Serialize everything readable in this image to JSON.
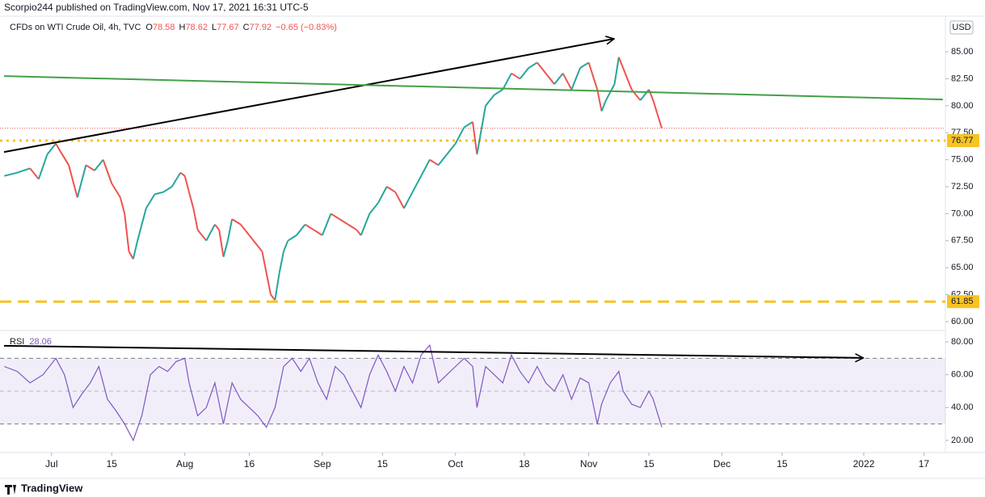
{
  "header": {
    "publisher": "Scorpio244 published on TradingView.com, Nov 17, 2021 16:31 UTC-5",
    "currency": "USD",
    "footer": "TradingView"
  },
  "chart_data": [
    {
      "type": "line",
      "title": "CFDs on WTI Crude Oil, 4h, TVC",
      "ohlc": [
        {
          "key": "O",
          "value": "78.58"
        },
        {
          "key": "H",
          "value": "78.62"
        },
        {
          "key": "L",
          "value": "77.67"
        },
        {
          "key": "C",
          "value": "77.92"
        }
      ],
      "change": "−0.65 (−0.83%)",
      "up_color": "#26a69a",
      "down_color": "#ef5350",
      "x": [
        1,
        4,
        7,
        9,
        11,
        13,
        14,
        16,
        18,
        20,
        22,
        24,
        26,
        28,
        29,
        30,
        31,
        32,
        34,
        36,
        38,
        40,
        42,
        43,
        44,
        45,
        46,
        48,
        50,
        51,
        52,
        53,
        54,
        56,
        58,
        60,
        61,
        62,
        63,
        64,
        65,
        66,
        67,
        69,
        71,
        73,
        75,
        77,
        79,
        81,
        83,
        84,
        86,
        88,
        90,
        92,
        94,
        96,
        98,
        100,
        102,
        104,
        106,
        108,
        110,
        111,
        113,
        115,
        117,
        119,
        121,
        123,
        125,
        127,
        129,
        131,
        133,
        135,
        137,
        139,
        140,
        141,
        143,
        144,
        145,
        147,
        149,
        151,
        152,
        154
      ],
      "values": [
        73.5,
        73.8,
        74.2,
        73.2,
        75.5,
        76.5,
        75.8,
        74.5,
        71.5,
        74.5,
        74.0,
        75.0,
        72.8,
        71.5,
        70.0,
        66.5,
        65.8,
        67.5,
        70.5,
        71.8,
        72.0,
        72.5,
        73.8,
        73.5,
        72.0,
        70.5,
        68.5,
        67.5,
        69.0,
        68.5,
        66.0,
        67.5,
        69.5,
        69.0,
        68.0,
        67.0,
        66.5,
        64.5,
        62.5,
        62.0,
        64.5,
        66.5,
        67.5,
        68.0,
        69.0,
        68.5,
        68.0,
        70.0,
        69.5,
        69.0,
        68.5,
        68.0,
        70.0,
        71.0,
        72.5,
        72.0,
        70.5,
        72.0,
        73.5,
        75.0,
        74.5,
        75.5,
        76.5,
        78.0,
        78.5,
        75.5,
        80.0,
        81.0,
        81.5,
        83.0,
        82.5,
        83.5,
        84.0,
        83.0,
        82.0,
        83.0,
        81.5,
        83.5,
        84.0,
        81.5,
        79.5,
        80.5,
        82.0,
        84.5,
        83.5,
        81.5,
        80.5,
        81.5,
        80.5,
        77.92
      ],
      "xlim": [
        0,
        220
      ],
      "xticks": [
        {
          "value": 12,
          "label": "Jul"
        },
        {
          "value": 26,
          "label": "15"
        },
        {
          "value": 43,
          "label": "Aug"
        },
        {
          "value": 58,
          "label": "16"
        },
        {
          "value": 75,
          "label": "Sep"
        },
        {
          "value": 89,
          "label": "15"
        },
        {
          "value": 106,
          "label": "Oct"
        },
        {
          "value": 122,
          "label": "18"
        },
        {
          "value": 137,
          "label": "Nov"
        },
        {
          "value": 151,
          "label": "15"
        },
        {
          "value": 168,
          "label": "Dec"
        },
        {
          "value": 182,
          "label": "15"
        },
        {
          "value": 201,
          "label": "2022"
        },
        {
          "value": 215,
          "label": "17"
        }
      ],
      "ylim": [
        59.25,
        88.15
      ],
      "yticks": [
        {
          "value": 60,
          "label": "60.00"
        },
        {
          "value": 62.5,
          "label": "62.50"
        },
        {
          "value": 65,
          "label": "65.00"
        },
        {
          "value": 67.5,
          "label": "67.50"
        },
        {
          "value": 70,
          "label": "70.00"
        },
        {
          "value": 72.5,
          "label": "72.50"
        },
        {
          "value": 75,
          "label": "75.00"
        },
        {
          "value": 77.5,
          "label": "77.50"
        },
        {
          "value": 80,
          "label": "80.00"
        },
        {
          "value": 82.5,
          "label": "82.50"
        },
        {
          "value": 85,
          "label": "85.00"
        }
      ],
      "trendlines": [
        {
          "x": [
            0.94,
            142.9
          ],
          "y": [
            75.71,
            86.2
          ],
          "color": "#000000",
          "arrow": true
        },
        {
          "x": [
            0.94,
            219.4
          ],
          "y": [
            82.75,
            80.58
          ],
          "color": "#43a047",
          "arrow": false
        }
      ],
      "hlines": [
        {
          "value": 76.77,
          "color": "#f7c325",
          "style": "dotted"
        },
        {
          "value": 61.85,
          "color": "#f7c325",
          "style": "dashed"
        }
      ],
      "last_color": "#ef5350"
    },
    {
      "type": "line",
      "title": "RSI",
      "color": "#7e57c2",
      "x": [
        1,
        4,
        7,
        10,
        13,
        15,
        17,
        19,
        21,
        23,
        25,
        27,
        29,
        31,
        33,
        35,
        37,
        39,
        41,
        43,
        44,
        46,
        48,
        50,
        52,
        54,
        56,
        58,
        60,
        62,
        64,
        66,
        68,
        70,
        72,
        74,
        76,
        78,
        80,
        82,
        84,
        86,
        88,
        90,
        92,
        94,
        96,
        98,
        100,
        102,
        104,
        106,
        108,
        110,
        111,
        113,
        115,
        117,
        119,
        121,
        123,
        125,
        127,
        129,
        131,
        133,
        135,
        137,
        139,
        140,
        142,
        144,
        145,
        147,
        149,
        151,
        152,
        154
      ],
      "values": [
        65,
        62,
        55,
        60,
        70,
        60,
        40,
        48,
        55,
        65,
        45,
        38,
        30,
        20,
        35,
        60,
        65,
        62,
        68,
        70,
        55,
        35,
        40,
        55,
        30,
        55,
        45,
        40,
        35,
        28,
        40,
        65,
        70,
        62,
        70,
        55,
        45,
        65,
        60,
        50,
        40,
        60,
        72,
        62,
        50,
        65,
        55,
        72,
        78,
        55,
        60,
        65,
        70,
        65,
        40,
        65,
        60,
        55,
        72,
        62,
        55,
        65,
        55,
        50,
        60,
        45,
        58,
        55,
        30,
        42,
        55,
        62,
        50,
        42,
        40,
        50,
        45,
        28.06
      ],
      "xlim": [
        0,
        220
      ],
      "ylim": [
        12.6,
        86.4
      ],
      "yticks": [
        {
          "value": 20,
          "label": "20.00"
        },
        {
          "value": 40,
          "label": "40.00"
        },
        {
          "value": 60,
          "label": "60.00"
        },
        {
          "value": 80,
          "label": "80.00"
        }
      ],
      "band": [
        30,
        70
      ],
      "midline": 50,
      "trendlines": [
        {
          "x": [
            0.94,
            200.9
          ],
          "y": [
            77.6,
            70.2
          ],
          "color": "#000000",
          "arrow": true
        }
      ]
    }
  ]
}
